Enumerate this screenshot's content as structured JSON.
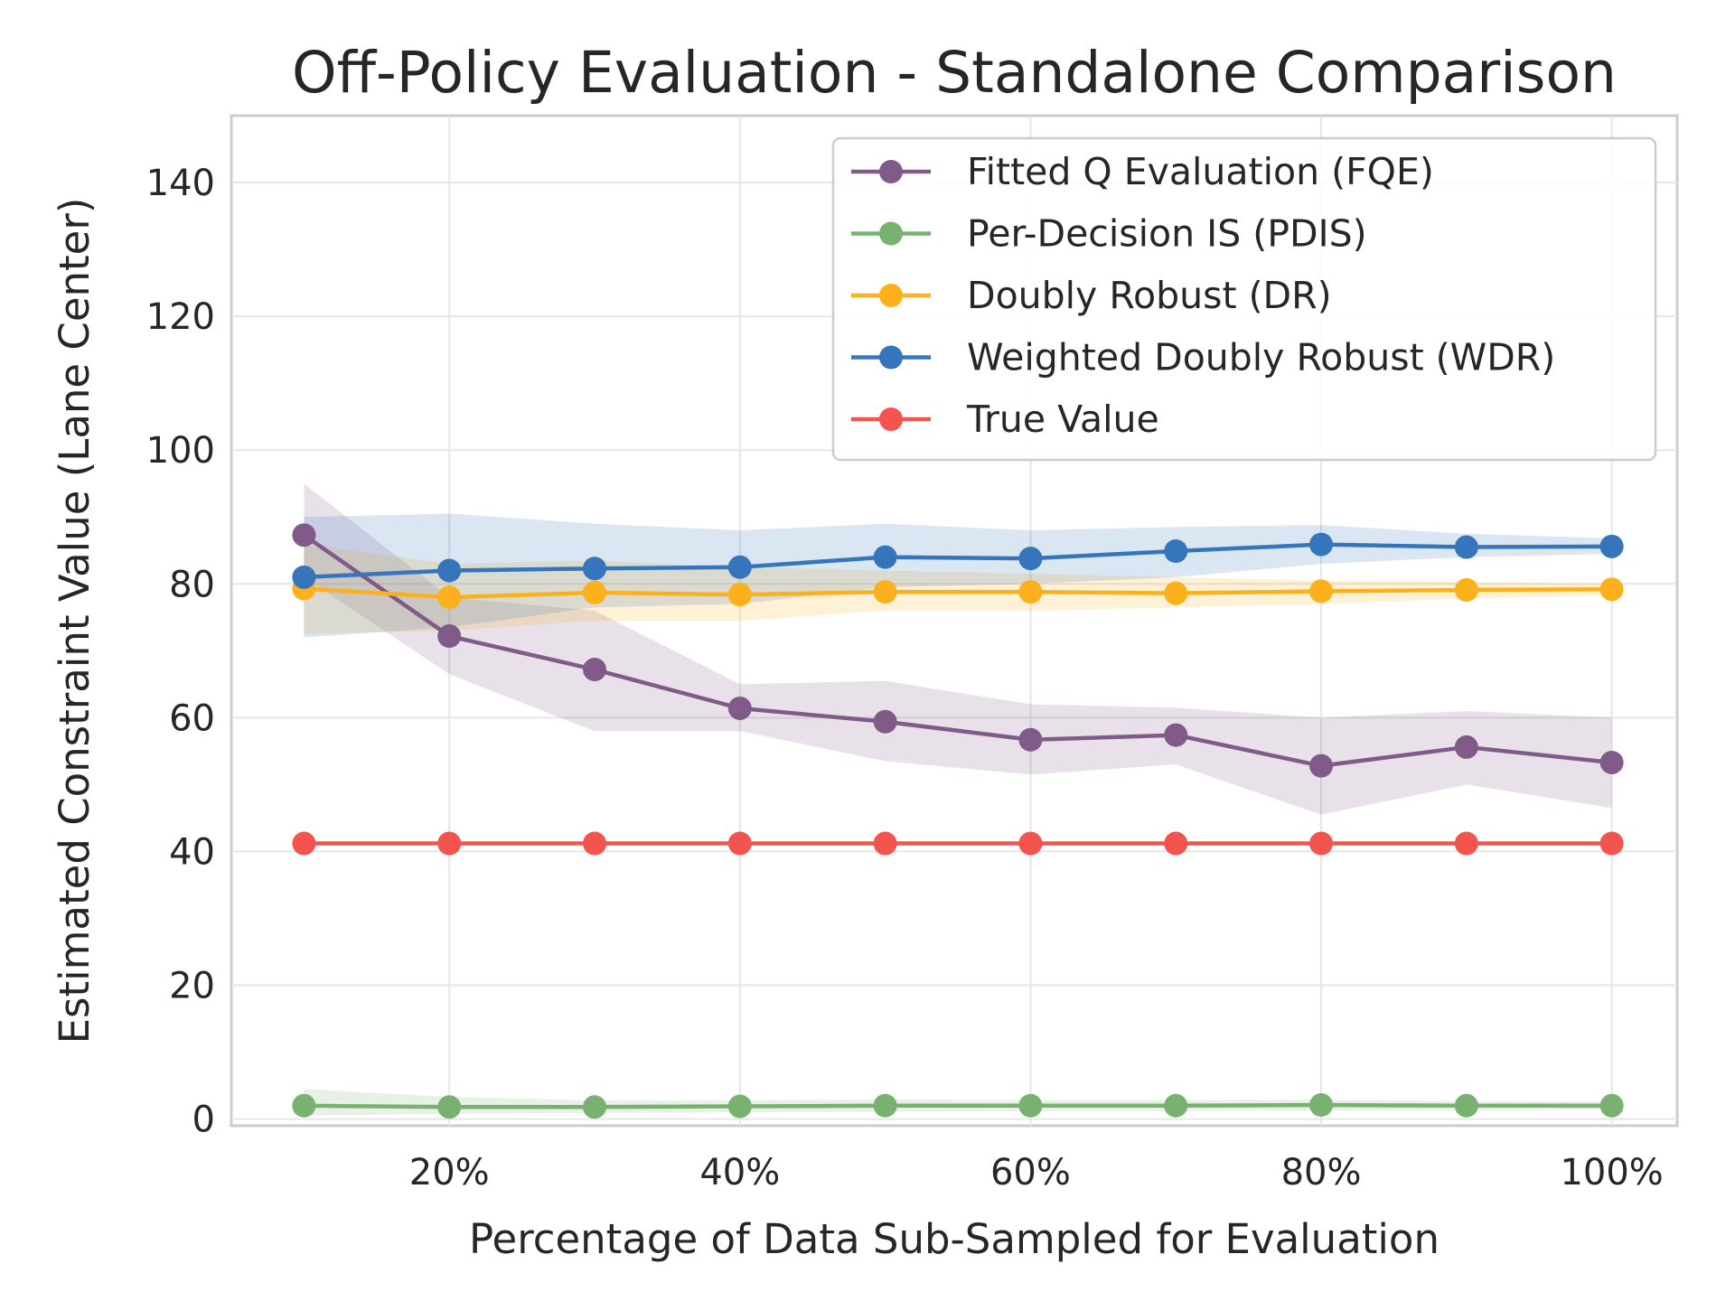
{
  "chart_data": {
    "type": "line",
    "title": "Off-Policy Evaluation - Standalone Comparison",
    "xlabel": "Percentage of Data Sub-Sampled for Evaluation",
    "ylabel": "Estimated Constraint Value (Lane Center)",
    "x": [
      10,
      20,
      30,
      40,
      50,
      60,
      70,
      80,
      90,
      100
    ],
    "xlim": [
      5,
      104.5
    ],
    "ylim": [
      -1,
      150
    ],
    "xticks": [
      20,
      40,
      60,
      80,
      100
    ],
    "xtick_labels": [
      "20%",
      "40%",
      "60%",
      "80%",
      "100%"
    ],
    "yticks": [
      0,
      20,
      40,
      60,
      80,
      100,
      120,
      140
    ],
    "ytick_labels": [
      "0",
      "20",
      "40",
      "60",
      "80",
      "100",
      "120",
      "140"
    ],
    "grid": true,
    "legend_position": "top-right",
    "series": [
      {
        "name": "Fitted Q Evaluation (FQE)",
        "color": "#805a89",
        "values": [
          87.3,
          72.2,
          67.2,
          61.4,
          59.4,
          56.7,
          57.4,
          52.8,
          55.6,
          53.3
        ],
        "lower": [
          81.0,
          66.5,
          58.0,
          58.0,
          53.5,
          51.5,
          53.0,
          45.5,
          50.0,
          46.5
        ],
        "upper": [
          95.0,
          78.0,
          76.0,
          65.0,
          65.5,
          62.0,
          61.5,
          60.0,
          61.0,
          60.0
        ]
      },
      {
        "name": "Per-Decision IS (PDIS)",
        "color": "#79b270",
        "values": [
          2.0,
          1.8,
          1.8,
          1.9,
          2.0,
          2.0,
          2.0,
          2.1,
          2.0,
          2.0
        ],
        "lower": [
          0.5,
          0.8,
          0.9,
          1.0,
          1.1,
          1.2,
          1.2,
          1.3,
          1.3,
          1.4
        ],
        "upper": [
          4.5,
          3.3,
          2.8,
          2.8,
          2.9,
          2.8,
          2.8,
          2.9,
          2.7,
          2.6
        ]
      },
      {
        "name": "Doubly Robust (DR)",
        "color": "#fbb01c",
        "values": [
          79.3,
          78.0,
          78.7,
          78.4,
          78.8,
          78.8,
          78.6,
          78.9,
          79.1,
          79.2
        ],
        "lower": [
          72.5,
          73.0,
          74.5,
          74.5,
          76.0,
          76.0,
          76.5,
          77.0,
          77.8,
          78.3
        ],
        "upper": [
          86.0,
          83.0,
          83.5,
          82.5,
          82.0,
          81.5,
          81.0,
          80.5,
          80.3,
          80.0
        ]
      },
      {
        "name": "Weighted Doubly Robust (WDR)",
        "color": "#3575bb",
        "values": [
          81.0,
          82.0,
          82.3,
          82.5,
          84.0,
          83.8,
          84.9,
          85.9,
          85.5,
          85.6
        ],
        "lower": [
          72.0,
          73.5,
          76.5,
          77.0,
          79.5,
          80.0,
          81.0,
          83.0,
          84.0,
          84.5
        ],
        "upper": [
          90.0,
          90.5,
          89.0,
          88.0,
          89.0,
          88.0,
          88.5,
          88.8,
          87.5,
          86.8
        ]
      },
      {
        "name": "True Value",
        "color": "#f4544e",
        "values": [
          41.2,
          41.2,
          41.2,
          41.2,
          41.2,
          41.2,
          41.2,
          41.2,
          41.2,
          41.2
        ]
      }
    ]
  }
}
